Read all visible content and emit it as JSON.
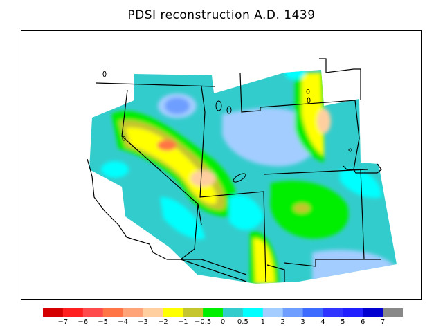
{
  "title": "PDSI reconstruction A.D. 1439",
  "legend": {
    "colors": [
      "#d40000",
      "#ff1f1f",
      "#ff4b4b",
      "#ff7545",
      "#ffa478",
      "#ffcfa0",
      "#ffff00",
      "#c5c52e",
      "#00ee00",
      "#33cccc",
      "#00ffff",
      "#a3cdff",
      "#6e9eff",
      "#3c6cff",
      "#2f35ff",
      "#1f1fff",
      "#0000d0",
      "#888888"
    ],
    "labels": [
      "−7",
      "−6",
      "−5",
      "−4",
      "−3",
      "−2",
      "−1",
      "−0.5",
      "0",
      "0.5",
      "1",
      "2",
      "3",
      "4",
      "5",
      "6",
      "7"
    ]
  }
}
